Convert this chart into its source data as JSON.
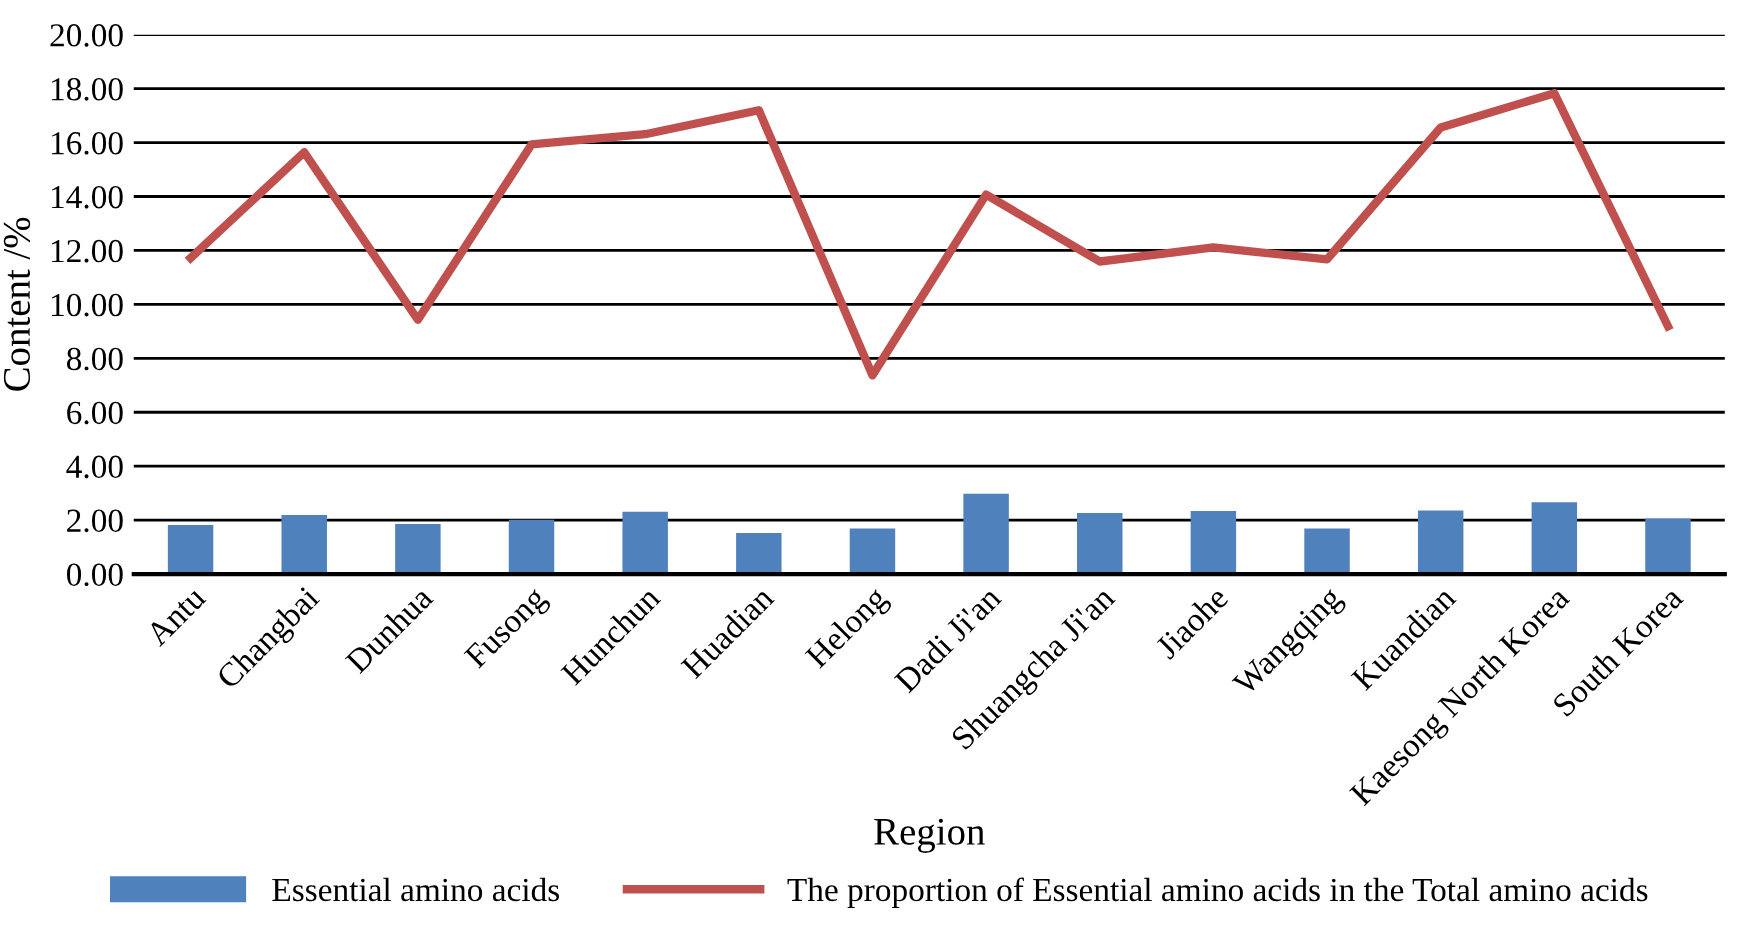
{
  "chart_data": {
    "type": "bar",
    "xlabel": "Region",
    "ylabel": "Content /%",
    "categories": [
      "Antu",
      "Changbai",
      "Dunhua",
      "Fusong",
      "Hunchun",
      "Huadian",
      "Helong",
      "Dadi Ji'an",
      "Shuangcha Ji'an",
      "Jiaohe",
      "Wangqing",
      "Kuandian",
      "Kaesong North Korea",
      "South Korea"
    ],
    "series": [
      {
        "name": "Essential amino acids",
        "color": "#4f81bd",
        "values": [
          1.82,
          2.19,
          1.86,
          2.01,
          2.31,
          1.52,
          1.69,
          2.98,
          2.26,
          2.34,
          1.69,
          2.36,
          2.66,
          2.06
        ]
      },
      {
        "name": "The proportion of Essential amino acids in the Total amino acids",
        "type": "line",
        "color": "#c0504d",
        "values": [
          11.72,
          15.64,
          9.43,
          15.93,
          16.31,
          17.2,
          7.37,
          14.07,
          11.59,
          12.11,
          11.67,
          16.56,
          17.83,
          9.19
        ]
      }
    ],
    "ylim": [
      0,
      20
    ],
    "yticks": [
      {
        "value": 0,
        "label": "0.00"
      },
      {
        "value": 2,
        "label": "2.00"
      },
      {
        "value": 4,
        "label": "4.00"
      },
      {
        "value": 6,
        "label": "6.00"
      },
      {
        "value": 8,
        "label": "8.00"
      },
      {
        "value": 10,
        "label": "10.00"
      },
      {
        "value": 12,
        "label": "12.00"
      },
      {
        "value": 14,
        "label": "14.00"
      },
      {
        "value": 16,
        "label": "16.00"
      },
      {
        "value": 18,
        "label": "18.00"
      },
      {
        "value": 20,
        "label": "20.00"
      }
    ],
    "grid": "y",
    "legend": "bottom",
    "marker": "none",
    "line_style": "solid"
  }
}
